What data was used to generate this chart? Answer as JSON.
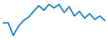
{
  "values": [
    8.5,
    8.5,
    3.0,
    7.0,
    9.5,
    11.0,
    13.5,
    16.0,
    14.0,
    16.5,
    15.0,
    16.5,
    13.0,
    15.5,
    11.5,
    13.5,
    10.5,
    12.5,
    10.0,
    11.5,
    9.5
  ],
  "line_color": "#1a7abf",
  "linewidth": 1.1,
  "background_color": "#ffffff"
}
